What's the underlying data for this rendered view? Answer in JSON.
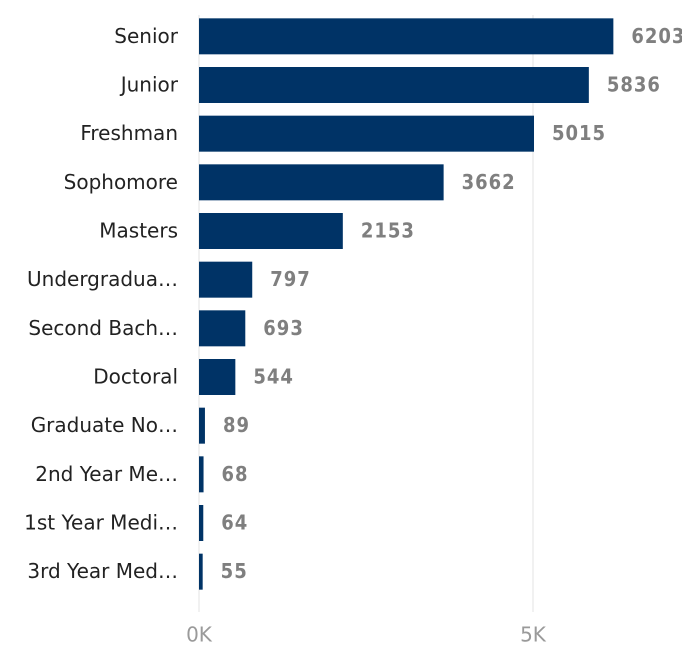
{
  "chart_data": {
    "type": "bar",
    "orientation": "horizontal",
    "categories": [
      "Senior",
      "Junior",
      "Freshman",
      "Sophomore",
      "Masters",
      "Undergradua…",
      "Second Bach…",
      "Doctoral",
      "Graduate No…",
      "2nd Year Me…",
      "1st Year Medi…",
      "3rd Year Med…"
    ],
    "values": [
      6203,
      5836,
      5015,
      3662,
      2153,
      797,
      693,
      544,
      89,
      68,
      64,
      55
    ],
    "color": "#003366",
    "xlim": [
      0,
      7000
    ],
    "xticks": [
      {
        "value": 0,
        "label": "0K"
      },
      {
        "value": 5000,
        "label": "5K"
      }
    ],
    "grid": true
  }
}
